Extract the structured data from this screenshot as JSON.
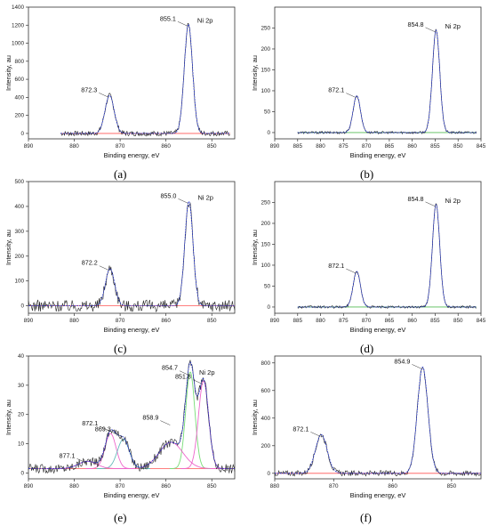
{
  "chart_data": [
    {
      "id": "a",
      "type": "line",
      "panel_label": "(a)",
      "xlabel": "Binding energy, eV",
      "ylabel": "Intensity, au",
      "xlim": [
        890,
        845
      ],
      "ylim": [
        -60,
        1400
      ],
      "x_range": [
        883,
        846
      ],
      "x_ticks": [
        890,
        880,
        870,
        860,
        850
      ],
      "y_ticks": [
        0,
        200,
        400,
        600,
        800,
        1000,
        1200,
        1400
      ],
      "spectrum_label": "Ni 2p",
      "noise": 28,
      "background": 0,
      "peaks": [
        {
          "x": 855.1,
          "height": 1210,
          "width": 0.9
        },
        {
          "x": 872.3,
          "height": 420,
          "width": 1.0
        }
      ],
      "annotations": [
        {
          "text": "855.1",
          "x": 855.1,
          "y": 1210
        },
        {
          "text": "872.3",
          "x": 872.3,
          "y": 420
        }
      ],
      "baseline_color": "#ff5555",
      "fit_color": "#2233cc",
      "data_color": "#222222"
    },
    {
      "id": "b",
      "type": "line",
      "panel_label": "(b)",
      "xlabel": "Binding energy, eV",
      "ylabel": "Intensity, au",
      "xlim": [
        890,
        845
      ],
      "ylim": [
        -15,
        300
      ],
      "x_range": [
        885,
        846
      ],
      "x_ticks": [
        890,
        885,
        880,
        875,
        870,
        865,
        860,
        855,
        850,
        845
      ],
      "y_ticks": [
        0,
        50,
        100,
        150,
        200,
        250
      ],
      "spectrum_label": "Ni 2p",
      "noise": 3,
      "background": 0,
      "peaks": [
        {
          "x": 854.8,
          "height": 245,
          "width": 0.8
        },
        {
          "x": 872.1,
          "height": 88,
          "width": 0.8
        }
      ],
      "annotations": [
        {
          "text": "854.8",
          "x": 854.8,
          "y": 245
        },
        {
          "text": "872.1",
          "x": 872.1,
          "y": 88
        }
      ],
      "baseline_color": "#55bb55",
      "fit_color": "#2233cc",
      "data_color": "#222222"
    },
    {
      "id": "c",
      "type": "line",
      "panel_label": "(c)",
      "xlabel": "Binding energy, eV",
      "ylabel": "Intensity, au",
      "xlim": [
        890,
        845
      ],
      "ylim": [
        -30,
        500
      ],
      "x_range": [
        890,
        845
      ],
      "x_ticks": [
        890,
        880,
        870,
        860,
        850
      ],
      "y_ticks": [
        0,
        100,
        200,
        300,
        400,
        500
      ],
      "spectrum_label": "Ni 2p",
      "noise": 24,
      "background": 0,
      "peaks": [
        {
          "x": 855.0,
          "height": 420,
          "width": 0.9
        },
        {
          "x": 872.2,
          "height": 150,
          "width": 1.0
        }
      ],
      "annotations": [
        {
          "text": "855.0",
          "x": 855.0,
          "y": 420
        },
        {
          "text": "872.2",
          "x": 872.2,
          "y": 150
        }
      ],
      "baseline_color": "#ff5555",
      "fit_color": "#2233cc",
      "data_color": "#222222"
    },
    {
      "id": "d",
      "type": "line",
      "panel_label": "(d)",
      "xlabel": "Binding energy, eV",
      "ylabel": "Intensity, au",
      "xlim": [
        890,
        845
      ],
      "ylim": [
        -15,
        300
      ],
      "x_range": [
        885,
        846
      ],
      "x_ticks": [
        890,
        885,
        880,
        875,
        870,
        865,
        860,
        855,
        850,
        845
      ],
      "y_ticks": [
        0,
        50,
        100,
        150,
        200,
        250
      ],
      "spectrum_label": "Ni 2p",
      "noise": 3,
      "background": 0,
      "peaks": [
        {
          "x": 854.8,
          "height": 245,
          "width": 0.8
        },
        {
          "x": 872.1,
          "height": 85,
          "width": 0.8
        }
      ],
      "annotations": [
        {
          "text": "854.8",
          "x": 854.8,
          "y": 245
        },
        {
          "text": "872.1",
          "x": 872.1,
          "y": 85
        }
      ],
      "baseline_color": "#55bb55",
      "fit_color": "#2233cc",
      "data_color": "#222222"
    },
    {
      "id": "e",
      "type": "line",
      "panel_label": "(e)",
      "xlabel": "Binding energy, eV",
      "ylabel": "Intensity, au",
      "xlim": [
        890,
        845
      ],
      "ylim": [
        -2,
        40
      ],
      "x_range": [
        890,
        845
      ],
      "x_ticks": [
        890,
        880,
        870,
        860,
        850
      ],
      "y_ticks": [
        0,
        10,
        20,
        30,
        40
      ],
      "spectrum_label": "Ni 2p",
      "noise": 1.6,
      "background": 1.5,
      "peaks": [
        {
          "x": 854.7,
          "height": 33,
          "width": 1.0,
          "color": "#77dd77"
        },
        {
          "x": 851.8,
          "height": 30,
          "width": 1.1,
          "color": "#ee66cc"
        },
        {
          "x": 858.9,
          "height": 9,
          "width": 2.6,
          "color": "#ee66cc"
        },
        {
          "x": 872.1,
          "height": 12,
          "width": 1.2,
          "color": "#ee66cc"
        },
        {
          "x": 869.3,
          "height": 10,
          "width": 1.3,
          "color": "#66bbbb"
        },
        {
          "x": 877.1,
          "height": 2.5,
          "width": 2.0,
          "color": "#ee66cc"
        }
      ],
      "annotations": [
        {
          "text": "854.7",
          "x": 854.7,
          "y": 34
        },
        {
          "text": "851.8",
          "x": 851.8,
          "y": 31
        },
        {
          "text": "858.9",
          "x": 858.9,
          "y": 17
        },
        {
          "text": "872.1",
          "x": 872.1,
          "y": 15
        },
        {
          "text": "869.3",
          "x": 869.3,
          "y": 13
        },
        {
          "text": "877.1",
          "x": 877.1,
          "y": 4
        }
      ],
      "baseline_color": "#ff5555",
      "fit_color": "#2233cc",
      "data_color": "#222222"
    },
    {
      "id": "f",
      "type": "line",
      "panel_label": "(f)",
      "xlabel": "Binding energy, eV",
      "ylabel": "Intensity, au",
      "xlim": [
        880,
        845
      ],
      "ylim": [
        -40,
        850
      ],
      "x_range": [
        880,
        845
      ],
      "x_ticks": [
        880,
        870,
        860,
        850
      ],
      "y_ticks": [
        0,
        200,
        400,
        600,
        800
      ],
      "spectrum_label": "",
      "noise": 20,
      "background": 0,
      "peaks": [
        {
          "x": 854.9,
          "height": 770,
          "width": 0.9
        },
        {
          "x": 872.1,
          "height": 280,
          "width": 1.0
        }
      ],
      "annotations": [
        {
          "text": "854.9",
          "x": 854.9,
          "y": 770
        },
        {
          "text": "872.1",
          "x": 872.1,
          "y": 280
        }
      ],
      "baseline_color": "#ff5555",
      "fit_color": "#2233cc",
      "data_color": "#222222"
    }
  ]
}
